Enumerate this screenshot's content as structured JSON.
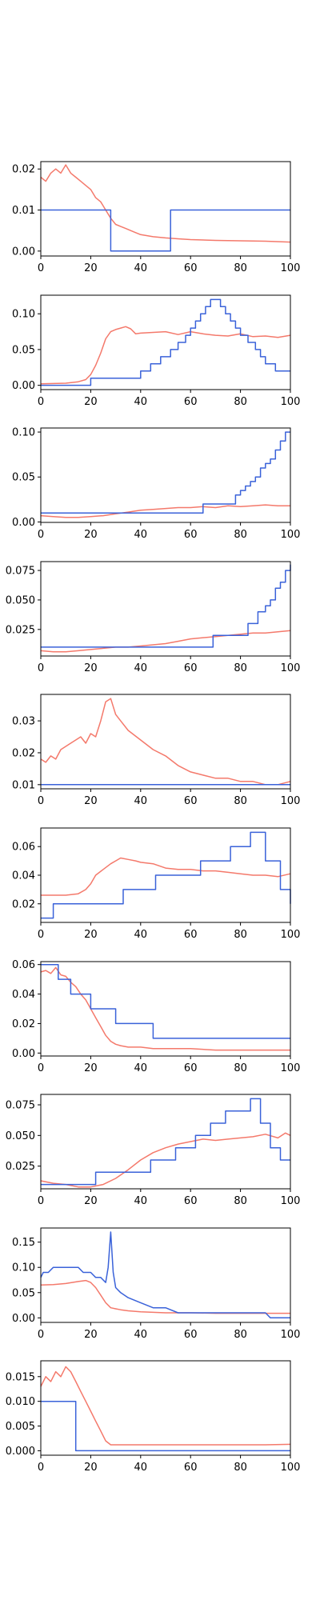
{
  "colors": {
    "red_series": "#f4796b",
    "blue_series": "#3a62d9",
    "axes": "#000000",
    "background": "#ffffff"
  },
  "chart_data": [
    {
      "type": "line",
      "xlim": [
        0,
        100
      ],
      "ylim": [
        -0.0012,
        0.0218
      ],
      "xticks": [
        0,
        20,
        40,
        60,
        80,
        100
      ],
      "yticks": [
        0.0,
        0.01,
        0.02
      ],
      "ytick_labels": [
        "0.00",
        "0.01",
        "0.02"
      ],
      "series": [
        {
          "color": "#f4796b",
          "x": [
            0,
            2,
            4,
            6,
            8,
            10,
            12,
            14,
            16,
            18,
            20,
            22,
            24,
            26,
            28,
            30,
            32,
            34,
            36,
            38,
            40,
            45,
            50,
            55,
            60,
            70,
            80,
            90,
            100
          ],
          "y": [
            0.018,
            0.017,
            0.019,
            0.02,
            0.019,
            0.021,
            0.019,
            0.018,
            0.017,
            0.016,
            0.015,
            0.013,
            0.012,
            0.01,
            0.008,
            0.0065,
            0.006,
            0.0055,
            0.005,
            0.0045,
            0.004,
            0.0035,
            0.0032,
            0.003,
            0.0028,
            0.0026,
            0.0025,
            0.0024,
            0.0022
          ]
        },
        {
          "color": "#3a62d9",
          "step": true,
          "x": [
            0,
            28,
            52,
            100
          ],
          "y": [
            0.01,
            0.0,
            0.01,
            0.01
          ]
        }
      ]
    },
    {
      "type": "line",
      "xlim": [
        0,
        100
      ],
      "ylim": [
        -0.006,
        0.126
      ],
      "xticks": [
        0,
        20,
        40,
        60,
        80,
        100
      ],
      "yticks": [
        0.0,
        0.05,
        0.1
      ],
      "ytick_labels": [
        "0.00",
        "0.05",
        "0.10"
      ],
      "series": [
        {
          "color": "#f4796b",
          "x": [
            0,
            10,
            15,
            18,
            20,
            22,
            24,
            26,
            28,
            30,
            32,
            34,
            36,
            38,
            40,
            45,
            50,
            55,
            60,
            65,
            70,
            75,
            80,
            85,
            90,
            95,
            100
          ],
          "y": [
            0.002,
            0.003,
            0.005,
            0.008,
            0.015,
            0.028,
            0.045,
            0.065,
            0.075,
            0.078,
            0.08,
            0.082,
            0.079,
            0.072,
            0.073,
            0.074,
            0.075,
            0.071,
            0.075,
            0.072,
            0.07,
            0.069,
            0.072,
            0.068,
            0.069,
            0.067,
            0.07
          ]
        },
        {
          "color": "#3a62d9",
          "step": true,
          "x": [
            0,
            20,
            40,
            44,
            48,
            52,
            55,
            58,
            60,
            62,
            64,
            66,
            68,
            70,
            72,
            74,
            76,
            78,
            80,
            83,
            86,
            88,
            90,
            94,
            98,
            100
          ],
          "y": [
            0.0,
            0.01,
            0.02,
            0.03,
            0.04,
            0.05,
            0.06,
            0.07,
            0.08,
            0.09,
            0.1,
            0.11,
            0.12,
            0.12,
            0.11,
            0.1,
            0.09,
            0.08,
            0.07,
            0.06,
            0.05,
            0.04,
            0.03,
            0.02,
            0.02,
            0.02
          ]
        }
      ]
    },
    {
      "type": "line",
      "xlim": [
        0,
        100
      ],
      "ylim": [
        -0.0005,
        0.1045
      ],
      "xticks": [
        0,
        20,
        40,
        60,
        80,
        100
      ],
      "yticks": [
        0.0,
        0.05,
        0.1
      ],
      "ytick_labels": [
        "0.00",
        "0.05",
        "0.10"
      ],
      "series": [
        {
          "color": "#f4796b",
          "x": [
            0,
            5,
            10,
            15,
            20,
            25,
            30,
            35,
            40,
            45,
            50,
            55,
            60,
            65,
            70,
            75,
            80,
            85,
            90,
            95,
            100
          ],
          "y": [
            0.007,
            0.006,
            0.005,
            0.005,
            0.006,
            0.007,
            0.009,
            0.011,
            0.013,
            0.014,
            0.015,
            0.016,
            0.016,
            0.017,
            0.016,
            0.018,
            0.017,
            0.018,
            0.019,
            0.018,
            0.018
          ]
        },
        {
          "color": "#3a62d9",
          "step": true,
          "x": [
            0,
            65,
            78,
            80,
            82,
            84,
            86,
            88,
            90,
            92,
            94,
            96,
            98,
            100
          ],
          "y": [
            0.01,
            0.02,
            0.03,
            0.035,
            0.04,
            0.045,
            0.05,
            0.06,
            0.065,
            0.07,
            0.08,
            0.09,
            0.1,
            0.1
          ]
        }
      ]
    },
    {
      "type": "line",
      "xlim": [
        0,
        100
      ],
      "ylim": [
        0.0025,
        0.0825
      ],
      "xticks": [
        0,
        20,
        40,
        60,
        80,
        100
      ],
      "yticks": [
        0.025,
        0.05,
        0.075
      ],
      "ytick_labels": [
        "0.025",
        "0.050",
        "0.075"
      ],
      "series": [
        {
          "color": "#f4796b",
          "x": [
            0,
            5,
            10,
            15,
            20,
            25,
            30,
            35,
            40,
            45,
            50,
            55,
            60,
            65,
            70,
            75,
            80,
            85,
            90,
            95,
            100
          ],
          "y": [
            0.007,
            0.006,
            0.006,
            0.007,
            0.008,
            0.009,
            0.01,
            0.01,
            0.011,
            0.012,
            0.013,
            0.015,
            0.017,
            0.018,
            0.019,
            0.02,
            0.021,
            0.022,
            0.022,
            0.023,
            0.024
          ]
        },
        {
          "color": "#3a62d9",
          "step": true,
          "x": [
            0,
            69,
            83,
            87,
            90,
            92,
            94,
            96,
            98,
            100
          ],
          "y": [
            0.01,
            0.02,
            0.03,
            0.04,
            0.045,
            0.05,
            0.06,
            0.065,
            0.075,
            0.08
          ]
        }
      ]
    },
    {
      "type": "line",
      "xlim": [
        0,
        100
      ],
      "ylim": [
        0.0087,
        0.0383
      ],
      "xticks": [
        0,
        20,
        40,
        60,
        80,
        100
      ],
      "yticks": [
        0.01,
        0.02,
        0.03
      ],
      "ytick_labels": [
        "0.01",
        "0.02",
        "0.03"
      ],
      "series": [
        {
          "color": "#f4796b",
          "x": [
            0,
            2,
            4,
            6,
            8,
            10,
            12,
            14,
            16,
            18,
            20,
            22,
            24,
            26,
            28,
            30,
            32,
            35,
            40,
            45,
            50,
            55,
            60,
            65,
            70,
            75,
            80,
            85,
            90,
            95,
            100
          ],
          "y": [
            0.018,
            0.017,
            0.019,
            0.018,
            0.021,
            0.022,
            0.023,
            0.024,
            0.025,
            0.023,
            0.026,
            0.025,
            0.03,
            0.036,
            0.037,
            0.032,
            0.03,
            0.027,
            0.024,
            0.021,
            0.019,
            0.016,
            0.014,
            0.013,
            0.012,
            0.012,
            0.011,
            0.011,
            0.01,
            0.01,
            0.011
          ]
        },
        {
          "color": "#3a62d9",
          "step": true,
          "x": [
            0,
            100
          ],
          "y": [
            0.01,
            0.01
          ]
        }
      ]
    },
    {
      "type": "line",
      "xlim": [
        0,
        100
      ],
      "ylim": [
        0.007,
        0.073
      ],
      "xticks": [
        0,
        20,
        40,
        60,
        80,
        100
      ],
      "yticks": [
        0.02,
        0.04,
        0.06
      ],
      "ytick_labels": [
        "0.02",
        "0.04",
        "0.06"
      ],
      "series": [
        {
          "color": "#f4796b",
          "x": [
            0,
            5,
            10,
            15,
            18,
            20,
            22,
            25,
            28,
            30,
            32,
            35,
            38,
            40,
            45,
            50,
            55,
            60,
            65,
            70,
            75,
            80,
            85,
            90,
            95,
            100
          ],
          "y": [
            0.026,
            0.026,
            0.026,
            0.027,
            0.03,
            0.034,
            0.04,
            0.044,
            0.048,
            0.05,
            0.052,
            0.051,
            0.05,
            0.049,
            0.048,
            0.045,
            0.044,
            0.044,
            0.043,
            0.043,
            0.042,
            0.041,
            0.04,
            0.04,
            0.039,
            0.041
          ]
        },
        {
          "color": "#3a62d9",
          "step": true,
          "x": [
            0,
            5,
            33,
            46,
            64,
            76,
            84,
            90,
            96,
            100
          ],
          "y": [
            0.01,
            0.02,
            0.03,
            0.04,
            0.05,
            0.06,
            0.07,
            0.05,
            0.03,
            0.02
          ]
        }
      ]
    },
    {
      "type": "line",
      "xlim": [
        0,
        100
      ],
      "ylim": [
        -0.002,
        0.062
      ],
      "xticks": [
        0,
        20,
        40,
        60,
        80,
        100
      ],
      "yticks": [
        0.0,
        0.02,
        0.04,
        0.06
      ],
      "ytick_labels": [
        "0.00",
        "0.02",
        "0.04",
        "0.06"
      ],
      "series": [
        {
          "color": "#f4796b",
          "x": [
            0,
            2,
            4,
            6,
            8,
            10,
            12,
            14,
            16,
            18,
            20,
            22,
            24,
            26,
            28,
            30,
            32,
            35,
            40,
            45,
            50,
            55,
            60,
            70,
            80,
            90,
            100
          ],
          "y": [
            0.055,
            0.056,
            0.054,
            0.058,
            0.053,
            0.052,
            0.048,
            0.045,
            0.04,
            0.036,
            0.03,
            0.024,
            0.018,
            0.012,
            0.008,
            0.006,
            0.005,
            0.004,
            0.004,
            0.003,
            0.003,
            0.003,
            0.003,
            0.002,
            0.002,
            0.002,
            0.002
          ]
        },
        {
          "color": "#3a62d9",
          "step": true,
          "x": [
            0,
            7,
            12,
            20,
            30,
            45,
            100
          ],
          "y": [
            0.06,
            0.05,
            0.04,
            0.03,
            0.02,
            0.01,
            0.01
          ]
        }
      ]
    },
    {
      "type": "line",
      "xlim": [
        0,
        100
      ],
      "ylim": [
        0.0065,
        0.0835
      ],
      "xticks": [
        0,
        20,
        40,
        60,
        80,
        100
      ],
      "yticks": [
        0.025,
        0.05,
        0.075
      ],
      "ytick_labels": [
        "0.025",
        "0.050",
        "0.075"
      ],
      "series": [
        {
          "color": "#f4796b",
          "x": [
            0,
            5,
            10,
            15,
            20,
            25,
            30,
            35,
            40,
            45,
            50,
            55,
            60,
            65,
            70,
            75,
            80,
            85,
            90,
            95,
            98,
            100
          ],
          "y": [
            0.013,
            0.011,
            0.01,
            0.008,
            0.008,
            0.01,
            0.015,
            0.022,
            0.03,
            0.036,
            0.04,
            0.043,
            0.045,
            0.047,
            0.046,
            0.047,
            0.048,
            0.049,
            0.051,
            0.048,
            0.052,
            0.05
          ]
        },
        {
          "color": "#3a62d9",
          "step": true,
          "x": [
            0,
            22,
            34,
            44,
            54,
            62,
            68,
            74,
            84,
            88,
            92,
            96,
            100
          ],
          "y": [
            0.01,
            0.02,
            0.02,
            0.03,
            0.04,
            0.05,
            0.06,
            0.07,
            0.08,
            0.06,
            0.04,
            0.03,
            0.03
          ]
        }
      ]
    },
    {
      "type": "line",
      "xlim": [
        0,
        100
      ],
      "ylim": [
        -0.009,
        0.178
      ],
      "xticks": [
        0,
        20,
        40,
        60,
        80,
        100
      ],
      "yticks": [
        0.0,
        0.05,
        0.1,
        0.15
      ],
      "ytick_labels": [
        "0.00",
        "0.05",
        "0.10",
        "0.15"
      ],
      "series": [
        {
          "color": "#f4796b",
          "x": [
            0,
            5,
            10,
            15,
            18,
            20,
            22,
            24,
            26,
            28,
            30,
            32,
            35,
            40,
            45,
            50,
            55,
            60,
            70,
            80,
            90,
            100
          ],
          "y": [
            0.065,
            0.066,
            0.068,
            0.072,
            0.074,
            0.07,
            0.06,
            0.045,
            0.03,
            0.02,
            0.018,
            0.016,
            0.014,
            0.012,
            0.011,
            0.01,
            0.01,
            0.01,
            0.009,
            0.009,
            0.009,
            0.009
          ]
        },
        {
          "color": "#3a62d9",
          "x": [
            0,
            1,
            3,
            5,
            10,
            15,
            17,
            20,
            22,
            24,
            26,
            27,
            28,
            29,
            30,
            32,
            35,
            40,
            45,
            50,
            55,
            60,
            70,
            80,
            90,
            92,
            100
          ],
          "y": [
            0.08,
            0.09,
            0.09,
            0.1,
            0.1,
            0.1,
            0.09,
            0.09,
            0.08,
            0.08,
            0.07,
            0.1,
            0.17,
            0.09,
            0.06,
            0.05,
            0.04,
            0.03,
            0.02,
            0.02,
            0.01,
            0.01,
            0.01,
            0.01,
            0.01,
            0.0,
            0.0
          ]
        }
      ]
    },
    {
      "type": "line",
      "xlim": [
        0,
        100
      ],
      "ylim": [
        -0.0009,
        0.0182
      ],
      "xticks": [
        0,
        20,
        40,
        60,
        80,
        100
      ],
      "yticks": [
        0.0,
        0.005,
        0.01,
        0.015
      ],
      "ytick_labels": [
        "0.000",
        "0.005",
        "0.010",
        "0.015"
      ],
      "series": [
        {
          "color": "#f4796b",
          "x": [
            0,
            2,
            4,
            6,
            8,
            10,
            12,
            14,
            16,
            18,
            20,
            22,
            24,
            26,
            28,
            30,
            35,
            40,
            50,
            60,
            70,
            80,
            90,
            100
          ],
          "y": [
            0.013,
            0.015,
            0.014,
            0.016,
            0.015,
            0.017,
            0.016,
            0.014,
            0.012,
            0.01,
            0.008,
            0.006,
            0.004,
            0.002,
            0.0012,
            0.0012,
            0.0012,
            0.0012,
            0.0012,
            0.0012,
            0.0012,
            0.0012,
            0.0012,
            0.0013
          ]
        },
        {
          "color": "#3a62d9",
          "step": true,
          "x": [
            0,
            14,
            100
          ],
          "y": [
            0.01,
            0.0,
            0.0
          ]
        }
      ]
    }
  ]
}
